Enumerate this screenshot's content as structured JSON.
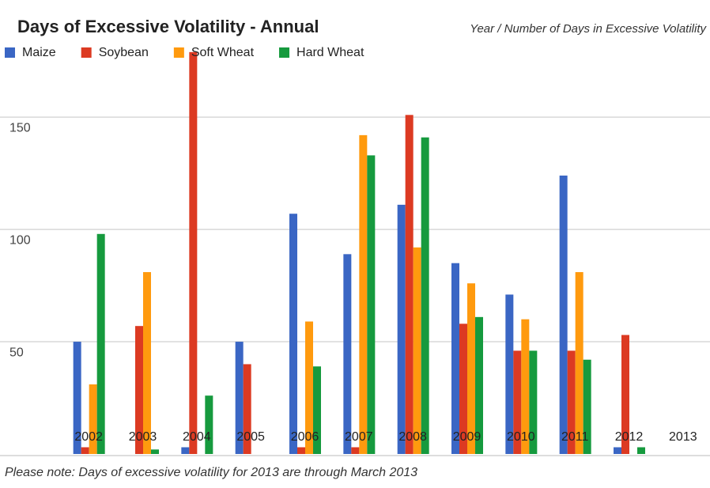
{
  "chart_data": {
    "type": "bar",
    "title": "Days of Excessive Volatility - Annual",
    "subtitle": "Year / Number of Days in Excessive Volatility",
    "note": "Please note: Days of excessive volatility for 2013 are through March 2013",
    "categories": [
      "2002",
      "2003",
      "2004",
      "2005",
      "2006",
      "2007",
      "2008",
      "2009",
      "2010",
      "2011",
      "2012",
      "2013"
    ],
    "series": [
      {
        "name": "Maize",
        "color": "#3a66c4",
        "values": [
          50,
          0,
          3,
          50,
          107,
          89,
          111,
          85,
          71,
          124,
          3,
          0
        ]
      },
      {
        "name": "Soybean",
        "color": "#dc3a22",
        "values": [
          3,
          57,
          179,
          40,
          3,
          3,
          151,
          58,
          46,
          46,
          53,
          0
        ]
      },
      {
        "name": "Soft Wheat",
        "color": "#ff9a0e",
        "values": [
          31,
          81,
          0,
          0,
          59,
          142,
          92,
          76,
          60,
          81,
          0,
          0
        ]
      },
      {
        "name": "Hard Wheat",
        "color": "#169a3e",
        "values": [
          98,
          2,
          26,
          0,
          39,
          133,
          141,
          61,
          46,
          42,
          3,
          0
        ]
      }
    ],
    "ylim": [
      0,
      180
    ],
    "yticks": [
      50,
      100,
      150
    ],
    "grid": true,
    "legend": "top"
  }
}
